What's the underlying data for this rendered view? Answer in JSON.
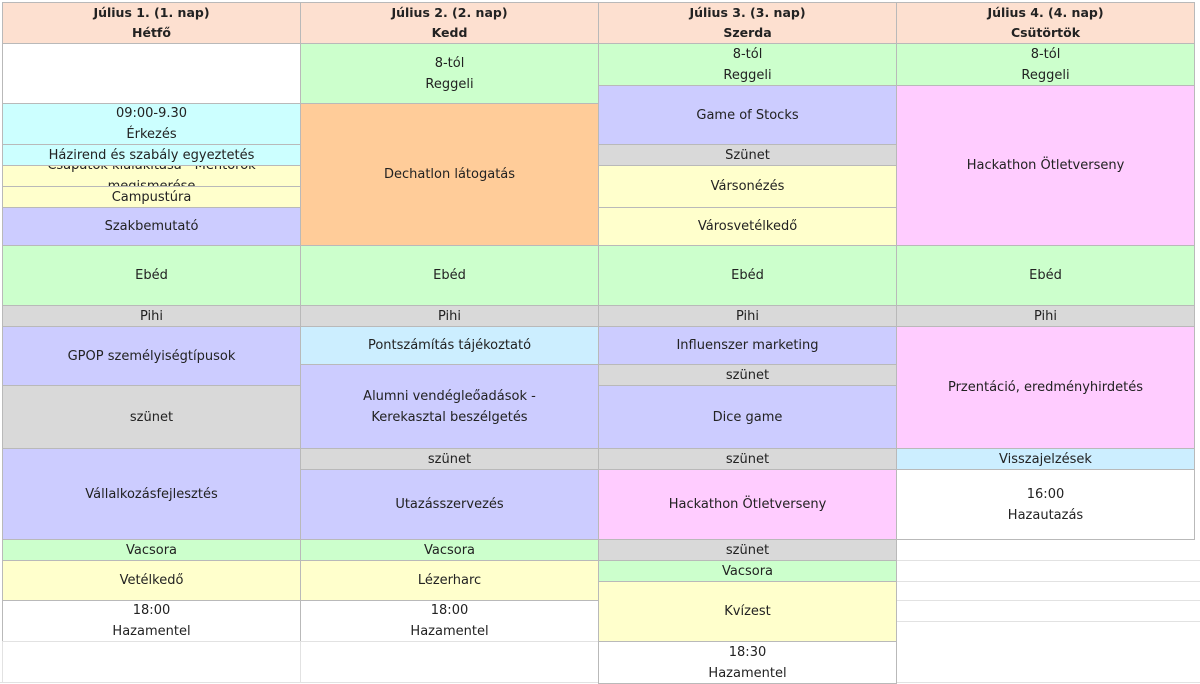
{
  "schedule": {
    "days": [
      {
        "date": "Július 1. (1. nap)",
        "weekday": "Hétfő"
      },
      {
        "date": "Július 2. (2. nap)",
        "weekday": "Kedd"
      },
      {
        "date": "Július 3. (3. nap)",
        "weekday": "Szerda"
      },
      {
        "date": "Július 4. (4. nap)",
        "weekday": "Csütörtök"
      }
    ],
    "day1": {
      "arrival_time": "09:00-9.30",
      "arrival_label": "Érkezés",
      "house_rules": "Házirend és szabály egyeztetés",
      "teams": "Csapatok kialakítása - Mentorok megismerése",
      "campus_tour": "Campustúra",
      "majors": "Szakbemutató",
      "lunch": "Ebéd",
      "rest": "Pihi",
      "gpop": "GPOP személyiségtípusok",
      "break": "szünet",
      "business": "Vállalkozásfejlesztés",
      "dinner": "Vacsora",
      "quiz_game": "Vetélkedő",
      "home_time": "18:00",
      "home_label": "Hazamentel"
    },
    "day2": {
      "breakfast_time": "8-tól",
      "breakfast_label": "Reggeli",
      "decathlon": "Dechatlon látogatás",
      "lunch": "Ebéd",
      "rest": "Pihi",
      "scoring": "Pontszámítás tájékoztató",
      "alumni": "Alumni vendégleőadások - Kerekasztal beszélgetés",
      "break": "szünet",
      "travel": "Utazásszervezés",
      "dinner": "Vacsora",
      "laser": "Lézerharc",
      "home_time": "18:00",
      "home_label": "Hazamentel"
    },
    "day3": {
      "breakfast_time": "8-tól",
      "breakfast_label": "Reggeli",
      "stocks": "Game of Stocks",
      "break1": "Szünet",
      "city_tour": "Vársonézés",
      "city_quiz": "Városvetélkedő",
      "lunch": "Ebéd",
      "rest": "Pihi",
      "influencer": "Influenszer marketing",
      "break2": "szünet",
      "dice": "Dice game",
      "break3": "szünet",
      "hackathon": "Hackathon Ötletverseny",
      "break4": "szünet",
      "dinner": "Vacsora",
      "kviz": "Kvízest",
      "home_time": "18:30",
      "home_label": "Hazamentel"
    },
    "day4": {
      "breakfast_time": "8-tól",
      "breakfast_label": "Reggeli",
      "hackathon": "Hackathon Ötletverseny",
      "lunch": "Ebéd",
      "rest": "Pihi",
      "presentation": "Przentáció, eredményhirdetés",
      "feedback": "Visszajelzések",
      "home_time": "16:00",
      "home_label": "Hazautazás"
    }
  }
}
